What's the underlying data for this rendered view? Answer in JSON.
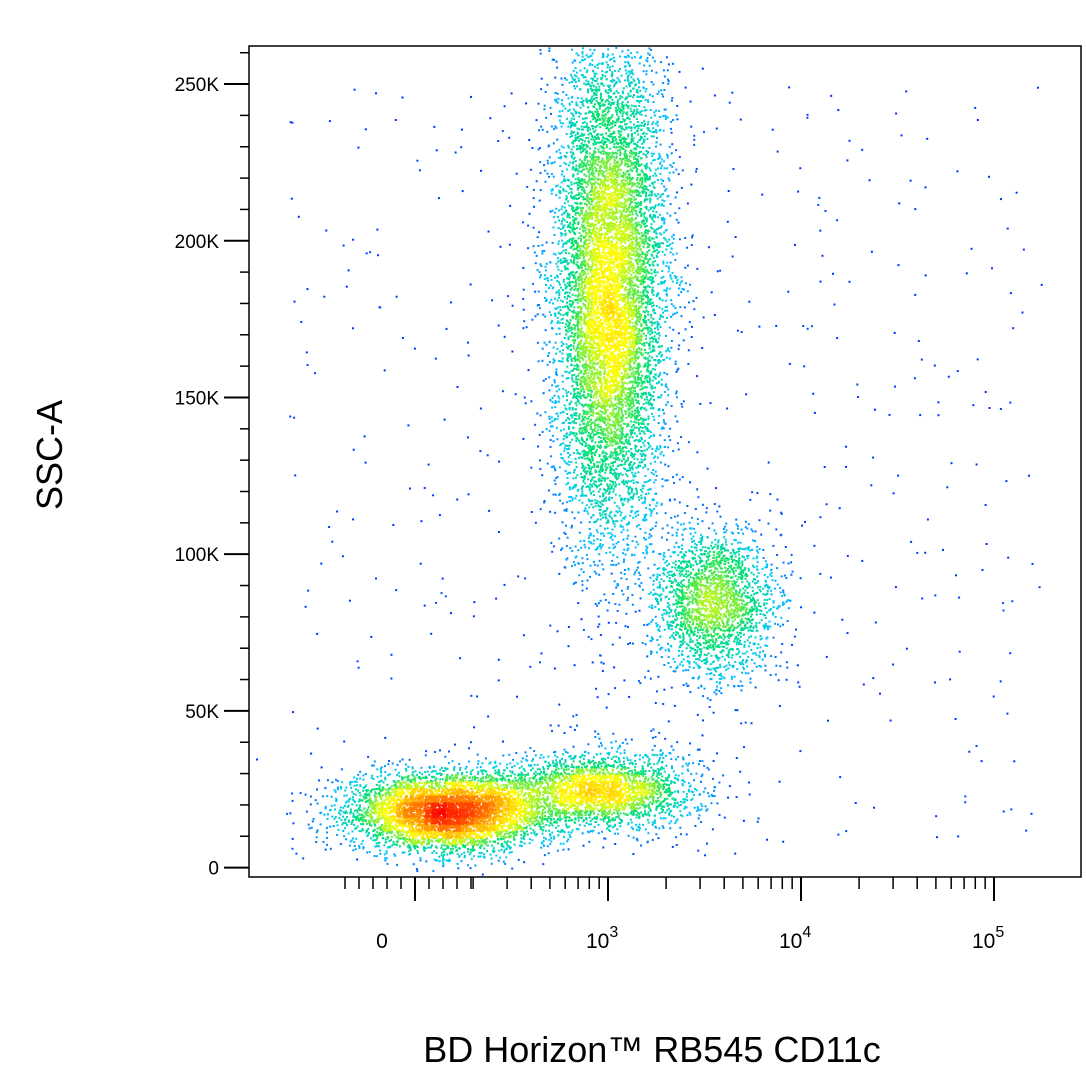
{
  "chart_data": {
    "type": "scatter",
    "subtype": "flow-cytometry-density-dot-plot",
    "title": "",
    "xlabel": "BD Horizon™ RB545  CD11c",
    "ylabel": "SSC-A",
    "x_scale": "biexponential",
    "xlim": [
      -300,
      150000
    ],
    "ylim": [
      -3000,
      262144
    ],
    "grid": false,
    "legend": "none",
    "color_scale": "density (blue → cyan → green → yellow → orange → red)",
    "colors": [
      "#0000ff",
      "#00c8ff",
      "#00e070",
      "#ffff00",
      "#ff9900",
      "#ff0000"
    ],
    "y_ticks": [
      {
        "value": 0,
        "label": "0"
      },
      {
        "value": 50000,
        "label": "50K"
      },
      {
        "value": 100000,
        "label": "100K"
      },
      {
        "value": 150000,
        "label": "150K"
      },
      {
        "value": 200000,
        "label": "200K"
      },
      {
        "value": 250000,
        "label": "250K"
      }
    ],
    "x_ticks": [
      {
        "value": 0,
        "base": "0",
        "exp": ""
      },
      {
        "value": 1000,
        "base": "10",
        "exp": "3"
      },
      {
        "value": 10000,
        "base": "10",
        "exp": "4"
      },
      {
        "value": 100000,
        "base": "10",
        "exp": "5"
      }
    ],
    "populations": [
      {
        "x_center": 150,
        "y_center": 18000,
        "x_spread": 120,
        "y_spread": 6000,
        "count": 5200,
        "peak_density": "red"
      },
      {
        "x_center": 1000,
        "y_center": 185000,
        "x_spread": 400,
        "y_spread": 40000,
        "count": 9000,
        "peak_density": "orange"
      },
      {
        "x_center": 3500,
        "y_center": 85000,
        "x_spread": 1500,
        "y_spread": 12000,
        "count": 2200,
        "peak_density": "cyan"
      },
      {
        "x_center": 900,
        "y_center": 25000,
        "x_spread": 700,
        "y_spread": 6000,
        "count": 2500,
        "peak_density": "cyan"
      }
    ]
  }
}
